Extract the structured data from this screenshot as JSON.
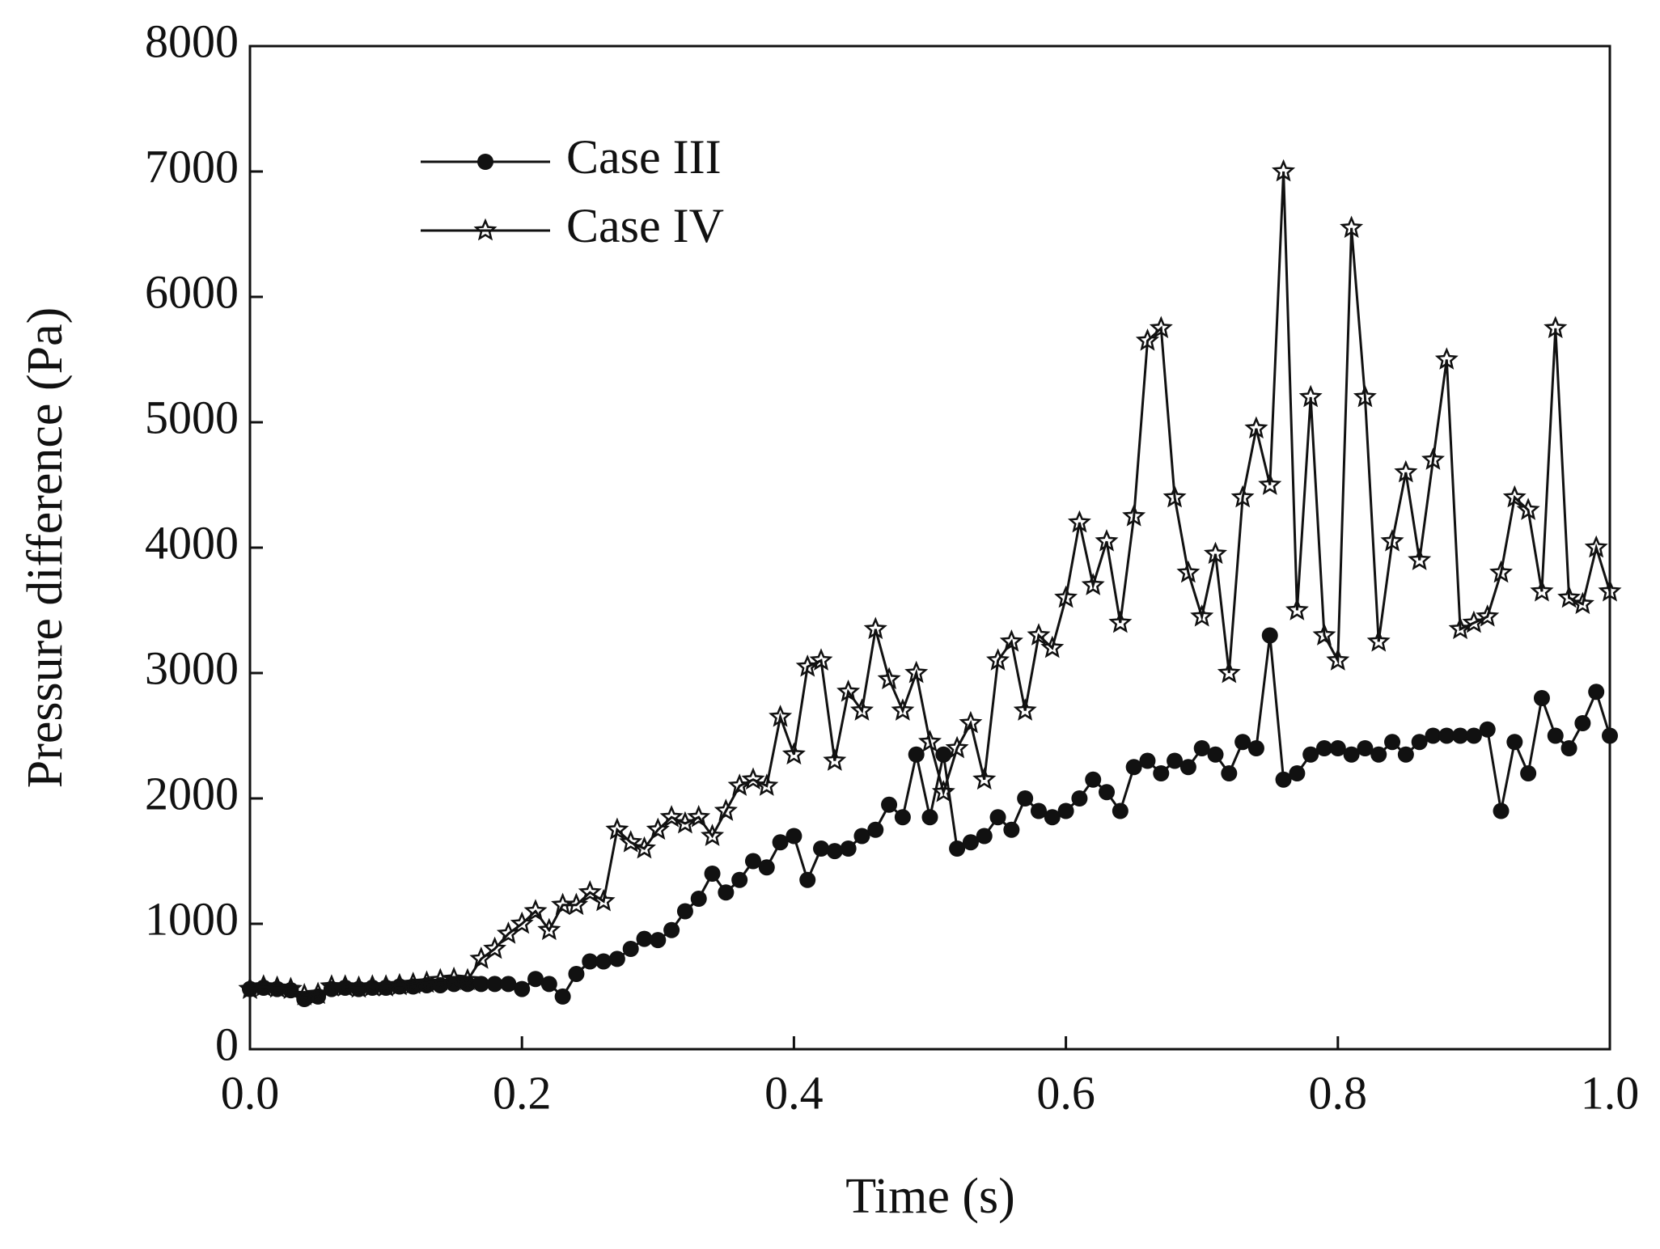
{
  "chart_data": {
    "type": "line",
    "xlabel": "Time (s)",
    "ylabel": "Pressure difference (Pa)",
    "x": [
      0,
      0.01,
      0.02,
      0.03,
      0.04,
      0.05,
      0.06,
      0.07,
      0.08,
      0.09,
      0.1,
      0.11,
      0.12,
      0.13,
      0.14,
      0.15,
      0.16,
      0.17,
      0.18,
      0.19,
      0.2,
      0.21,
      0.22,
      0.23,
      0.24,
      0.25,
      0.26,
      0.27,
      0.28,
      0.29,
      0.3,
      0.31,
      0.32,
      0.33,
      0.34,
      0.35,
      0.36,
      0.37,
      0.38,
      0.39,
      0.4,
      0.41,
      0.42,
      0.43,
      0.44,
      0.45,
      0.46,
      0.47,
      0.48,
      0.49,
      0.5,
      0.51,
      0.52,
      0.53,
      0.54,
      0.55,
      0.56,
      0.57,
      0.58,
      0.59,
      0.6,
      0.61,
      0.62,
      0.63,
      0.64,
      0.65,
      0.66,
      0.67,
      0.68,
      0.69,
      0.7,
      0.71,
      0.72,
      0.73,
      0.74,
      0.75,
      0.76,
      0.77,
      0.78,
      0.79,
      0.8,
      0.81,
      0.82,
      0.83,
      0.84,
      0.85,
      0.86,
      0.87,
      0.88,
      0.89,
      0.9,
      0.91,
      0.92,
      0.93,
      0.94,
      0.95,
      0.96,
      0.97,
      0.98,
      0.99,
      1
    ],
    "series": [
      {
        "name": "Case III",
        "color": "#111111",
        "marker": "circle",
        "values": [
          480,
          490,
          480,
          470,
          400,
          420,
          480,
          490,
          480,
          490,
          490,
          500,
          500,
          510,
          510,
          520,
          520,
          520,
          520,
          520,
          480,
          560,
          520,
          420,
          600,
          700,
          700,
          720,
          800,
          880,
          870,
          950,
          1100,
          1200,
          1400,
          1250,
          1350,
          1500,
          1450,
          1650,
          1700,
          1350,
          1600,
          1580,
          1600,
          1700,
          1750,
          1950,
          1850,
          2350,
          1850,
          2350,
          1600,
          1650,
          1700,
          1850,
          1750,
          2000,
          1900,
          1850,
          1900,
          2000,
          2150,
          2050,
          1900,
          2250,
          2300,
          2200,
          2300,
          2250,
          2400,
          2350,
          2200,
          2450,
          2400,
          3300,
          2150,
          2200,
          2350,
          2400,
          2400,
          2350,
          2400,
          2350,
          2450,
          2350,
          2450,
          2500,
          2500,
          2500,
          2500,
          2550,
          1900,
          2450,
          2200,
          2800,
          2500,
          2400,
          2600,
          2850,
          2500
        ]
      },
      {
        "name": "Case IV",
        "color": "#111111",
        "marker": "star",
        "values": [
          480,
          500,
          490,
          480,
          430,
          440,
          500,
          500,
          490,
          500,
          500,
          510,
          520,
          530,
          550,
          560,
          550,
          720,
          800,
          920,
          1000,
          1100,
          950,
          1150,
          1150,
          1250,
          1180,
          1750,
          1650,
          1600,
          1750,
          1850,
          1800,
          1850,
          1700,
          1900,
          2100,
          2150,
          2100,
          2650,
          2350,
          3050,
          3100,
          2300,
          2850,
          2700,
          3350,
          2950,
          2700,
          3000,
          2450,
          2050,
          2400,
          2600,
          2150,
          3100,
          3250,
          2700,
          3300,
          3200,
          3600,
          4200,
          3700,
          4050,
          3400,
          4250,
          5650,
          5750,
          4400,
          3800,
          3450,
          3950,
          3000,
          4400,
          4950,
          4500,
          7000,
          3500,
          5200,
          3300,
          3100,
          6550,
          5200,
          3250,
          4050,
          4600,
          3900,
          4700,
          5500,
          3350,
          3400,
          3450,
          3800,
          4400,
          4300,
          3650,
          5750,
          3600,
          3550,
          4000,
          3650
        ]
      }
    ],
    "xlim": [
      0,
      1
    ],
    "ylim": [
      0,
      8000
    ],
    "xticks": [
      {
        "value": 0,
        "label": "0.0"
      },
      0.2,
      0.4,
      0.6,
      0.8,
      {
        "value": 1,
        "label": "1.0"
      }
    ],
    "yticks": [
      0,
      1000,
      2000,
      3000,
      4000,
      5000,
      6000,
      7000,
      8000
    ],
    "legend": "upper left"
  }
}
